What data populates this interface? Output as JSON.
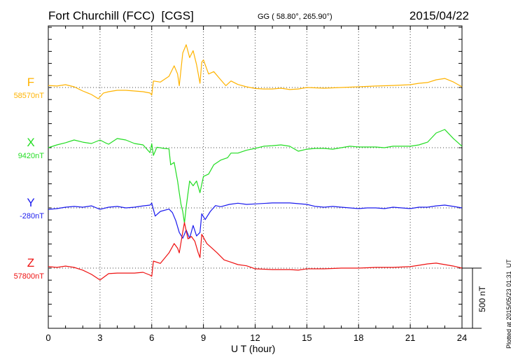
{
  "header": {
    "station": "Fort Churchill (FCC)  [CGS]",
    "coords": "GG ( 58.80°, 265.90°)",
    "date": "2015/04/22"
  },
  "footer": {
    "plotted": "Plotted at 2015/05/23 01:31  UT",
    "scale_label": "500 nT"
  },
  "chart_data": {
    "type": "line",
    "title": "Fort Churchill (FCC)  [CGS]",
    "xlabel": "U T (hour)",
    "ylabel": "",
    "xlim": [
      0,
      24
    ],
    "xticks": [
      "0",
      "3",
      "6",
      "9",
      "12",
      "15",
      "18",
      "21",
      "24"
    ],
    "scale_nT": 500,
    "grid": true,
    "series": [
      {
        "name": "F",
        "baseline_label": "58570nT",
        "color": "#ffb300",
        "x": [
          0,
          0.5,
          1,
          1.5,
          2,
          2.5,
          2.9,
          3.2,
          3.5,
          4,
          4.5,
          5,
          5.5,
          5.9,
          6.0,
          6.1,
          6.5,
          7.0,
          7.3,
          7.5,
          7.6,
          7.8,
          8.0,
          8.2,
          8.4,
          8.6,
          8.8,
          8.9,
          9.0,
          9.3,
          9.6,
          10,
          10.3,
          10.6,
          11,
          11.5,
          12,
          12.5,
          13,
          13.5,
          14,
          14.5,
          15,
          16,
          17,
          18,
          19,
          20,
          21,
          21.5,
          22,
          22.5,
          23,
          23.5,
          24
        ],
        "values": [
          17,
          12,
          23,
          6,
          -29,
          -58,
          -93,
          -46,
          -35,
          -23,
          -23,
          -29,
          -35,
          -46,
          -62,
          54,
          45,
          93,
          180,
          112,
          15,
          287,
          355,
          248,
          306,
          190,
          35,
          210,
          229,
          112,
          132,
          64,
          15,
          54,
          25,
          6,
          -8,
          -12,
          -12,
          -6,
          -17,
          -12,
          0,
          -6,
          0,
          6,
          12,
          17,
          23,
          35,
          41,
          64,
          75,
          46,
          6
        ]
      },
      {
        "name": "X",
        "baseline_label": "9420nT",
        "color": "#22dd22",
        "x": [
          0,
          0.5,
          1,
          1.5,
          2,
          2.5,
          3,
          3.3,
          3.5,
          4,
          4.5,
          5,
          5.5,
          5.9,
          6.0,
          6.1,
          6.3,
          6.7,
          7.0,
          7.1,
          7.3,
          7.5,
          7.6,
          7.7,
          7.8,
          7.9,
          8.0,
          8.2,
          8.4,
          8.6,
          8.8,
          9.0,
          9.3,
          9.6,
          10,
          10.4,
          10.6,
          11,
          11.5,
          12,
          12.5,
          13,
          13.5,
          14,
          14.5,
          15,
          15.5,
          16,
          16.5,
          17,
          17.5,
          18,
          19,
          19.5,
          20,
          21,
          21.5,
          22,
          22.5,
          23,
          23.5,
          24
        ],
        "values": [
          0,
          23,
          41,
          64,
          46,
          35,
          64,
          41,
          29,
          76,
          64,
          35,
          23,
          -41,
          33,
          -64,
          4,
          -6,
          -10,
          -142,
          -122,
          -277,
          -374,
          -471,
          -530,
          -627,
          -491,
          -277,
          -316,
          -277,
          -374,
          -239,
          -219,
          -142,
          -103,
          -83,
          -45,
          -45,
          -21,
          -6,
          12,
          17,
          23,
          12,
          -29,
          -12,
          -6,
          -6,
          -12,
          0,
          12,
          6,
          6,
          0,
          12,
          12,
          23,
          46,
          122,
          151,
          76,
          12
        ]
      },
      {
        "name": "Y",
        "baseline_label": "-280nT",
        "color": "#1a1aee",
        "x": [
          0,
          0.5,
          1,
          1.5,
          2,
          2.5,
          3,
          3.5,
          4,
          4.5,
          5,
          5.5,
          5.9,
          6.0,
          6.2,
          6.5,
          7.0,
          7.2,
          7.4,
          7.6,
          7.8,
          8.0,
          8.2,
          8.4,
          8.6,
          8.8,
          8.9,
          9.1,
          9.4,
          9.7,
          10,
          10.5,
          11,
          11.5,
          12,
          13,
          14,
          15,
          15.5,
          16,
          16.5,
          17,
          17.5,
          18,
          18.5,
          19,
          19.5,
          20,
          21,
          21.5,
          22,
          22.5,
          23,
          23.5,
          24
        ],
        "values": [
          -12,
          -6,
          6,
          12,
          6,
          17,
          -12,
          6,
          12,
          0,
          6,
          17,
          23,
          39,
          -68,
          -29,
          -10,
          -39,
          -107,
          -204,
          -252,
          -184,
          -252,
          -146,
          -233,
          -204,
          -49,
          -97,
          -29,
          19,
          10,
          29,
          39,
          29,
          33,
          41,
          41,
          29,
          12,
          6,
          12,
          6,
          0,
          -6,
          0,
          0,
          -6,
          6,
          -6,
          6,
          6,
          17,
          23,
          12,
          0
        ]
      },
      {
        "name": "Z",
        "baseline_label": "57800nT",
        "color": "#ee1111",
        "x": [
          0,
          0.5,
          1,
          1.5,
          2,
          2.5,
          3,
          3.5,
          4,
          4.5,
          5,
          5.5,
          5.9,
          6.0,
          6.1,
          6.5,
          7.0,
          7.3,
          7.5,
          7.6,
          7.8,
          7.9,
          8.1,
          8.3,
          8.5,
          8.7,
          8.8,
          8.9,
          9.2,
          9.5,
          9.8,
          10.2,
          10.6,
          11,
          11.5,
          12,
          13,
          14,
          14.5,
          15,
          16,
          17,
          18,
          19,
          20,
          21,
          21.5,
          22,
          22.5,
          23,
          23.5,
          24
        ],
        "values": [
          12,
          6,
          17,
          6,
          -17,
          -52,
          -99,
          -46,
          -41,
          -41,
          -41,
          -35,
          -58,
          -68,
          58,
          39,
          126,
          204,
          165,
          126,
          301,
          378,
          243,
          262,
          223,
          126,
          87,
          281,
          204,
          165,
          126,
          68,
          49,
          29,
          19,
          -6,
          -12,
          -12,
          -17,
          -6,
          -6,
          0,
          0,
          6,
          6,
          12,
          23,
          35,
          41,
          29,
          17,
          0
        ]
      }
    ]
  }
}
